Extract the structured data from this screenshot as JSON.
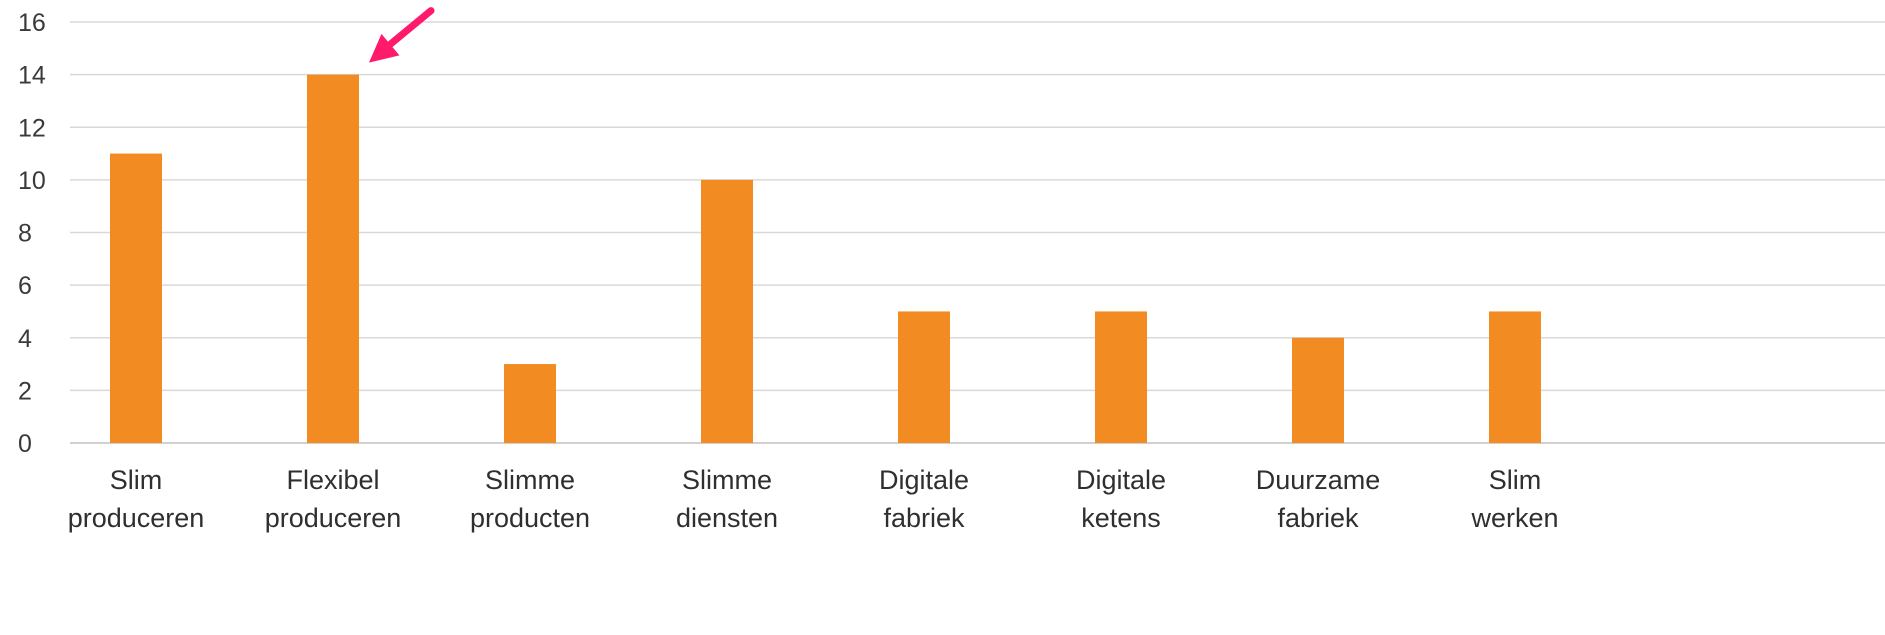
{
  "chart_data": {
    "type": "bar",
    "categories": [
      [
        "Slim",
        "produceren"
      ],
      [
        "Flexibel",
        "produceren"
      ],
      [
        "Slimme",
        "producten"
      ],
      [
        "Slimme",
        "diensten"
      ],
      [
        "Digitale",
        "fabriek"
      ],
      [
        "Digitale",
        "ketens"
      ],
      [
        "Duurzame",
        "fabriek"
      ],
      [
        "Slim",
        "werken"
      ]
    ],
    "values": [
      11,
      14,
      3,
      10,
      5,
      5,
      4,
      5
    ],
    "ylim": [
      0,
      16
    ],
    "yticks": [
      0,
      2,
      4,
      6,
      8,
      10,
      12,
      14,
      16
    ],
    "grid": true,
    "legend": "none",
    "annotation": {
      "type": "arrow",
      "target_category": "Flexibel produceren",
      "color": "#ff1a6c"
    }
  },
  "colors": {
    "bar": "#f28b22",
    "grid": "#d9d9d9",
    "axis": "#d0d0d0",
    "text": "#333333"
  }
}
